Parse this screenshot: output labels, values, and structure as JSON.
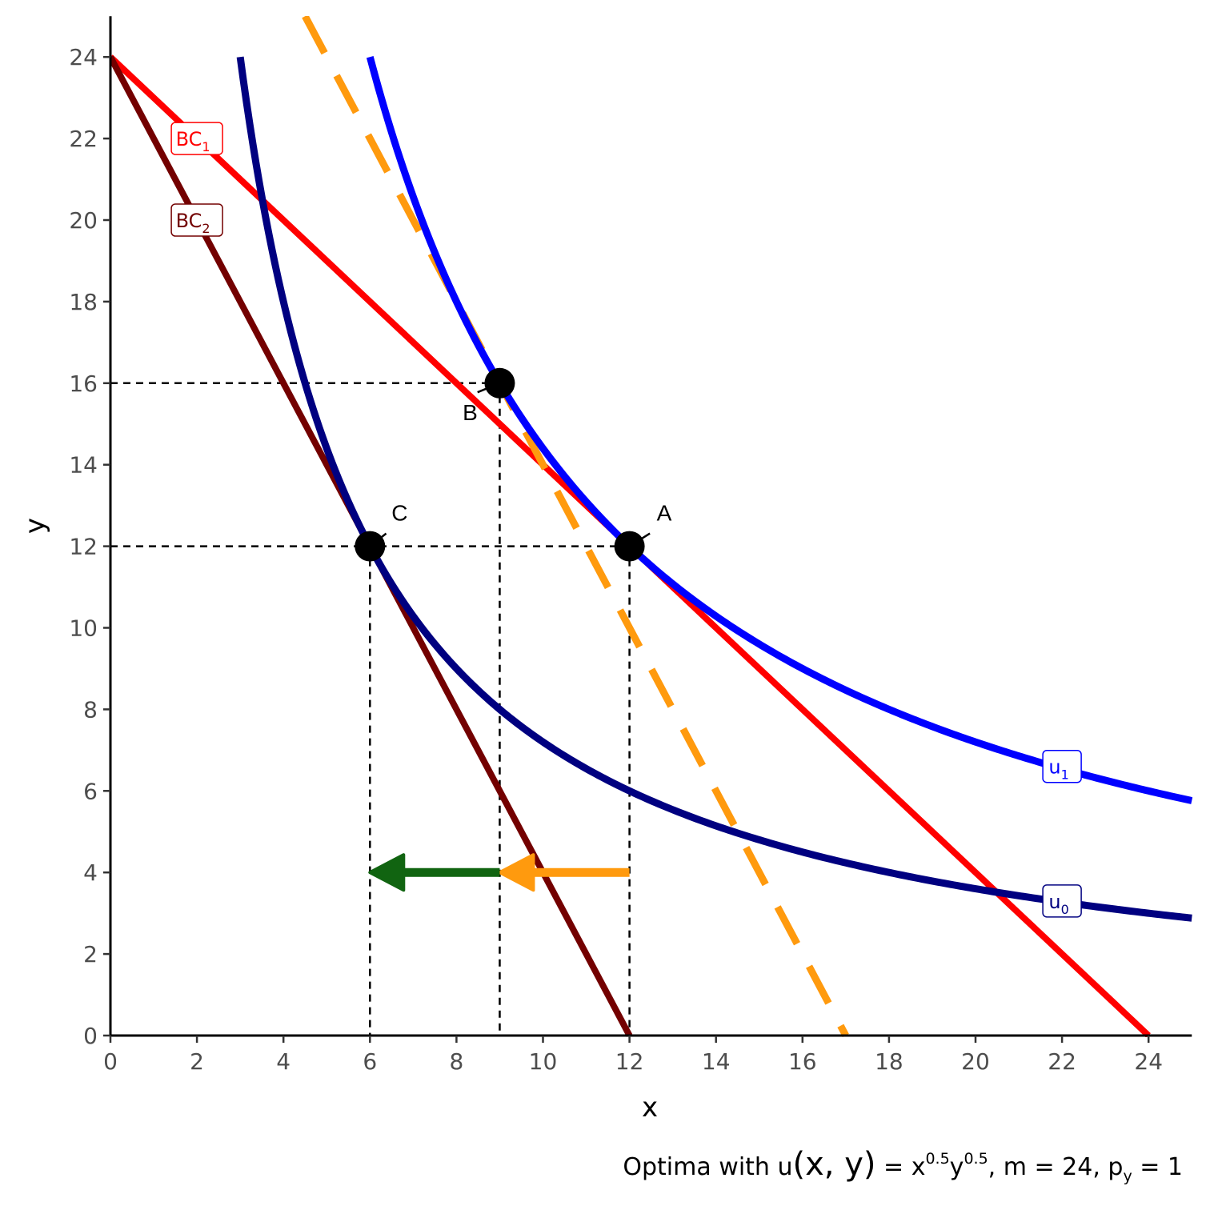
{
  "chart_data": {
    "type": "line",
    "xlabel": "x",
    "ylabel": "y",
    "xlim": [
      0,
      25
    ],
    "ylim": [
      0,
      25
    ],
    "xticks": [
      0,
      2,
      4,
      6,
      8,
      10,
      12,
      14,
      16,
      18,
      20,
      22,
      24
    ],
    "yticks": [
      0,
      2,
      4,
      6,
      8,
      10,
      12,
      14,
      16,
      18,
      20,
      22,
      24
    ],
    "grid": false,
    "caption": {
      "prefix": "Optima with u",
      "args": "(x, y)",
      "eq": " = x",
      "exp1": "0.5",
      "y": "y",
      "exp2": "0.5",
      "m": ", m = 24, p",
      "sub": "y",
      "end": " = 1"
    },
    "lines": [
      {
        "name": "BC",
        "sub": "1",
        "color": "#ff0000",
        "x": [
          0,
          24
        ],
        "y": [
          24,
          0
        ],
        "label_at": [
          2,
          22
        ]
      },
      {
        "name": "BC",
        "sub": "2",
        "color": "#730000",
        "x": [
          0,
          12
        ],
        "y": [
          24,
          0
        ],
        "label_at": [
          2,
          20
        ]
      }
    ],
    "dashed_line": {
      "color": "#ff9a0e",
      "x": [
        4.5,
        17
      ],
      "y": [
        25,
        0
      ]
    },
    "indifference_curves": [
      {
        "name": "u",
        "sub": "1",
        "color": "#0000ff",
        "k": 144,
        "x_from": 6,
        "x_to": 25,
        "label_at": [
          22,
          6.6
        ]
      },
      {
        "name": "u",
        "sub": "0",
        "color": "#000080",
        "k": 72,
        "x_from": 3,
        "x_to": 25,
        "label_at": [
          22,
          3.3
        ]
      }
    ],
    "points": [
      {
        "label": "A",
        "x": 12,
        "y": 12
      },
      {
        "label": "B",
        "x": 9,
        "y": 16
      },
      {
        "label": "C",
        "x": 6,
        "y": 12
      }
    ],
    "guide_lines": [
      {
        "x": [
          0,
          9
        ],
        "y": [
          16,
          16
        ]
      },
      {
        "x": [
          9,
          9
        ],
        "y": [
          16,
          0
        ]
      },
      {
        "x": [
          0,
          12
        ],
        "y": [
          12,
          12
        ]
      },
      {
        "x": [
          12,
          12
        ],
        "y": [
          12,
          0
        ]
      },
      {
        "x": [
          6,
          6
        ],
        "y": [
          12,
          0
        ]
      }
    ],
    "arrows": [
      {
        "name": "substitution-effect",
        "color": "#ff9a0e",
        "from": [
          12,
          4
        ],
        "to": [
          9,
          4
        ]
      },
      {
        "name": "income-effect",
        "color": "#116411",
        "from": [
          9,
          4
        ],
        "to": [
          6,
          4
        ]
      }
    ]
  }
}
